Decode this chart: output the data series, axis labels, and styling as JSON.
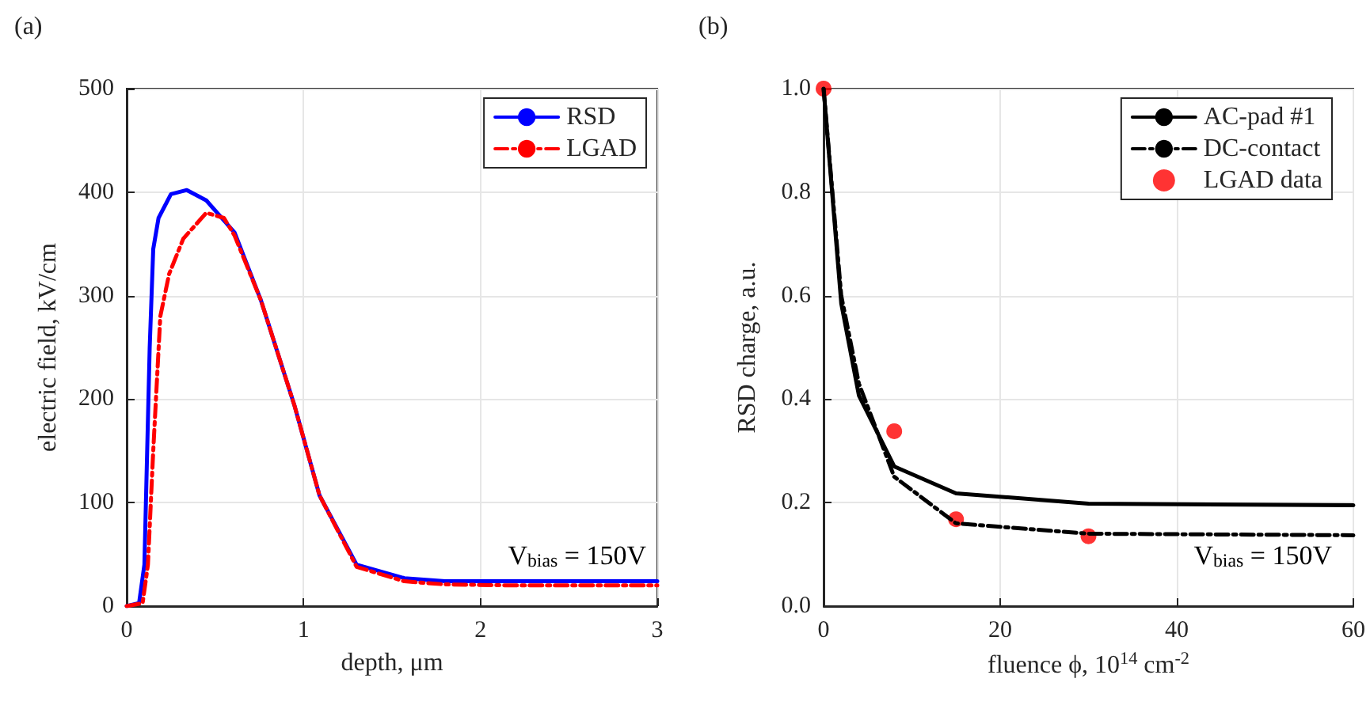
{
  "chart_data": [
    {
      "type": "line",
      "title": "(a)",
      "xlabel": "depth, μm",
      "ylabel": "electric field, kV/cm",
      "xlim": [
        0,
        3
      ],
      "xticks": [
        0,
        1,
        2,
        3
      ],
      "ylim": [
        0,
        500
      ],
      "yticks": [
        0,
        100,
        200,
        300,
        400,
        500
      ],
      "grid": true,
      "legend": "top right",
      "marker": "none",
      "annotations": [
        "V$_{bias}$ = 150V"
      ],
      "series": [
        {
          "name": "RSD",
          "color": "#0000ff",
          "line_style": "solid",
          "x": [
            0,
            0.07,
            0.1,
            0.13,
            0.15,
            0.18,
            0.25,
            0.34,
            0.45,
            0.61,
            0.76,
            0.95,
            1.09,
            1.3,
            1.57,
            1.8,
            2.2,
            3
          ],
          "values": [
            0,
            3,
            40,
            250,
            345,
            375,
            398,
            402,
            392,
            361,
            295,
            193,
            107,
            40,
            27,
            24,
            24,
            24
          ]
        },
        {
          "name": "LGAD",
          "color": "#ff0000",
          "line_style": "dashed",
          "x": [
            0,
            0.09,
            0.12,
            0.15,
            0.19,
            0.24,
            0.32,
            0.45,
            0.55,
            0.61,
            0.76,
            0.95,
            1.09,
            1.3,
            1.57,
            1.8,
            2.2,
            3
          ],
          "values": [
            0,
            3,
            40,
            150,
            280,
            321,
            355,
            380,
            375,
            358,
            295,
            193,
            107,
            38,
            24,
            21,
            20,
            20
          ]
        }
      ]
    },
    {
      "type": "line",
      "title": "(b)",
      "xlabel": "fluence ϕ, 10$^{14}$ cm$^{-2}$",
      "ylabel": "RSD charge, a.u.",
      "xlim": [
        0,
        60
      ],
      "xticks": [
        0,
        20,
        40,
        60
      ],
      "ylim": [
        0,
        1
      ],
      "yticks": [
        {
          "value": 0,
          "label": "0.0"
        },
        0.2,
        0.4,
        0.6,
        0.8,
        {
          "value": 1,
          "label": "1.0"
        }
      ],
      "grid": true,
      "legend": "top right",
      "annotations": [
        "V$_{bias}$ = 150V"
      ],
      "series": [
        {
          "name": "AC-pad #1",
          "color": "#000000",
          "line_style": "solid",
          "marker": "none",
          "x": [
            0,
            2,
            4,
            8,
            15,
            30,
            60
          ],
          "values": [
            1,
            0.585,
            0.407,
            0.27,
            0.218,
            0.198,
            0.195
          ]
        },
        {
          "name": "DC-contact",
          "color": "#000000",
          "line_style": "dashed",
          "marker": "none",
          "x": [
            0,
            2,
            4,
            8,
            15,
            30,
            60
          ],
          "values": [
            1,
            0.6,
            0.43,
            0.25,
            0.16,
            0.14,
            0.137
          ]
        },
        {
          "name": "LGAD data",
          "type": "scatter",
          "color": "#ff0000",
          "marker": "circle",
          "x": [
            0,
            8,
            15,
            30
          ],
          "values": [
            1,
            0.338,
            0.168,
            0.135
          ]
        }
      ]
    }
  ]
}
